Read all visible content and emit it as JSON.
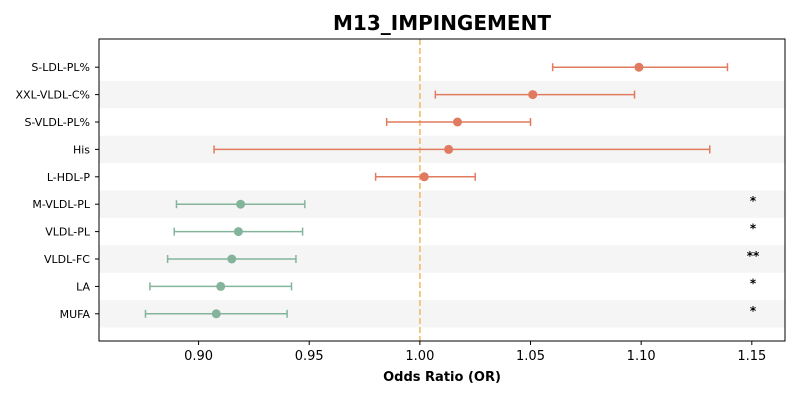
{
  "chart_data": {
    "type": "forest",
    "title": "M13_IMPINGEMENT",
    "xlabel": "Odds Ratio (OR)",
    "xlim": [
      0.855,
      1.165
    ],
    "xticks": [
      "0.90",
      "0.95",
      "1.00",
      "1.05",
      "1.10",
      "1.15"
    ],
    "xtick_values": [
      0.9,
      0.95,
      1.0,
      1.05,
      1.1,
      1.15
    ],
    "reference_line": 1.0,
    "colors": {
      "positive": "#e07b5f",
      "negative": "#84b59c",
      "reference": "#f2c27a",
      "band": "#f5f5f5"
    },
    "rows": [
      {
        "label": "S-LDL-PL%",
        "or": 1.099,
        "lo": 1.06,
        "hi": 1.139,
        "sig": ""
      },
      {
        "label": "XXL-VLDL-C%",
        "or": 1.051,
        "lo": 1.007,
        "hi": 1.097,
        "sig": ""
      },
      {
        "label": "S-VLDL-PL%",
        "or": 1.017,
        "lo": 0.985,
        "hi": 1.05,
        "sig": ""
      },
      {
        "label": "His",
        "or": 1.013,
        "lo": 0.907,
        "hi": 1.131,
        "sig": ""
      },
      {
        "label": "L-HDL-P",
        "or": 1.002,
        "lo": 0.98,
        "hi": 1.025,
        "sig": ""
      },
      {
        "label": "M-VLDL-PL",
        "or": 0.919,
        "lo": 0.89,
        "hi": 0.948,
        "sig": "*"
      },
      {
        "label": "VLDL-PL",
        "or": 0.918,
        "lo": 0.889,
        "hi": 0.947,
        "sig": "*"
      },
      {
        "label": "VLDL-FC",
        "or": 0.915,
        "lo": 0.886,
        "hi": 0.944,
        "sig": "**"
      },
      {
        "label": "LA",
        "or": 0.91,
        "lo": 0.878,
        "hi": 0.942,
        "sig": "*"
      },
      {
        "label": "MUFA",
        "or": 0.908,
        "lo": 0.876,
        "hi": 0.94,
        "sig": "*"
      }
    ]
  }
}
